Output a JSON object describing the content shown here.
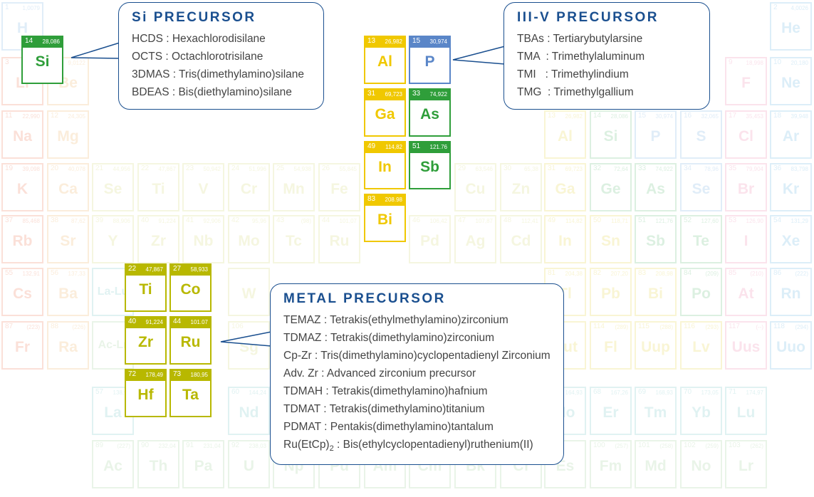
{
  "callouts": {
    "si": {
      "title": "Si PRECURSOR",
      "lines": [
        "HCDS : Hexachlorodisilane",
        "OCTS : Octachlorotrisilane",
        "3DMAS : Tris(dimethylamino)silane",
        "BDEAS : Bis(diethylamino)silane"
      ]
    },
    "iiiv": {
      "title": "III-V PRECURSOR",
      "lines": [
        "TBAs : Tertiarybutylarsine",
        "TMA  : Trimethylaluminum",
        "TMI   : Trimethylindium",
        "TMG  : Trimethylgallium"
      ]
    },
    "metal": {
      "title": "METAL PRECURSOR",
      "lines": [
        "TEMAZ : Tetrakis(ethylmethylamino)zirconium",
        "TDMAZ : Tetrakis(dimethylamino)zirconium",
        "Cp-Zr : Tris(dimethylamino)cyclopentadienyl Zirconium",
        "Adv. Zr : Advanced zirconium precursor",
        "TDMAH : Tetrakis(dimethylamino)hafnium",
        "TDMAT : Tetrakis(dimethylamino)titanium",
        "PDMAT : Pentakis(dimethylamino)tantalum"
      ],
      "last_line": {
        "prefix": "Ru(EtCp)",
        "subscript": "2",
        "suffix": " : Bis(ethylcyclopentadienyl)ruthenium(II)"
      }
    }
  },
  "colors": {
    "blue": "#1a4f8f",
    "green": "#2f9e3a",
    "yellow": "#f0c800",
    "olive": "#b8b800",
    "p_blue": "#5a86c8",
    "alkali": "#f29a80",
    "alkaline": "#f3c78c",
    "transition": "#e0e39a",
    "post": "#eddf72",
    "metalloid": "#8dcf9d",
    "nonmetal": "#9cc4ea",
    "halogen": "#f3a6c3",
    "noble": "#8ec8ea",
    "lanth": "#9cd6d6",
    "actin": "#b9dcb4"
  },
  "highlighted_elements": [
    {
      "num": "14",
      "mass": "28,086",
      "sym": "Si",
      "color": "green"
    },
    {
      "num": "13",
      "mass": "26,982",
      "sym": "Al",
      "color": "yellow"
    },
    {
      "num": "15",
      "mass": "30,974",
      "sym": "P",
      "color": "p_blue"
    },
    {
      "num": "31",
      "mass": "69,723",
      "sym": "Ga",
      "color": "yellow"
    },
    {
      "num": "33",
      "mass": "74,922",
      "sym": "As",
      "color": "green"
    },
    {
      "num": "49",
      "mass": "114,82",
      "sym": "In",
      "color": "yellow"
    },
    {
      "num": "51",
      "mass": "121.76",
      "sym": "Sb",
      "color": "green"
    },
    {
      "num": "83",
      "mass": "208.98",
      "sym": "Bi",
      "color": "yellow"
    },
    {
      "num": "22",
      "mass": "47,867",
      "sym": "Ti",
      "color": "olive"
    },
    {
      "num": "27",
      "mass": "58,933",
      "sym": "Co",
      "color": "olive"
    },
    {
      "num": "40",
      "mass": "91,224",
      "sym": "Zr",
      "color": "olive"
    },
    {
      "num": "44",
      "mass": "101.07",
      "sym": "Ru",
      "color": "olive"
    },
    {
      "num": "72",
      "mass": "178,49",
      "sym": "Hf",
      "color": "olive"
    },
    {
      "num": "73",
      "mass": "180,95",
      "sym": "Ta",
      "color": "olive"
    }
  ],
  "background_elements": [
    {
      "num": "1",
      "mass": "1,0079",
      "sym": "H",
      "color": "nonmetal"
    },
    {
      "num": "2",
      "mass": "4,0026",
      "sym": "He",
      "color": "noble"
    },
    {
      "num": "3",
      "mass": "",
      "sym": "Li",
      "color": "alkali"
    },
    {
      "num": "4",
      "mass": "9,0122",
      "sym": "Be",
      "color": "alkaline"
    },
    {
      "num": "9",
      "mass": "18,998",
      "sym": "F",
      "color": "halogen"
    },
    {
      "num": "10",
      "mass": "20,180",
      "sym": "Ne",
      "color": "noble"
    },
    {
      "num": "11",
      "mass": "22,990",
      "sym": "Na",
      "color": "alkali"
    },
    {
      "num": "12",
      "mass": "24,305",
      "sym": "Mg",
      "color": "alkaline"
    },
    {
      "num": "13",
      "mass": "26,982",
      "sym": "Al",
      "color": "post"
    },
    {
      "num": "14",
      "mass": "28,086",
      "sym": "Si",
      "color": "metalloid"
    },
    {
      "num": "15",
      "mass": "30,974",
      "sym": "P",
      "color": "nonmetal"
    },
    {
      "num": "16",
      "mass": "32,065",
      "sym": "S",
      "color": "nonmetal"
    },
    {
      "num": "17",
      "mass": "35,453",
      "sym": "Cl",
      "color": "halogen"
    },
    {
      "num": "18",
      "mass": "39,948",
      "sym": "Ar",
      "color": "noble"
    },
    {
      "num": "19",
      "mass": "39,098",
      "sym": "K",
      "color": "alkali"
    },
    {
      "num": "20",
      "mass": "40,078",
      "sym": "Ca",
      "color": "alkaline"
    },
    {
      "num": "21",
      "mass": "44,956",
      "sym": "Se",
      "color": "transition"
    },
    {
      "num": "22",
      "mass": "47,867",
      "sym": "Ti",
      "color": "transition"
    },
    {
      "num": "23",
      "mass": "50,942",
      "sym": "V",
      "color": "transition"
    },
    {
      "num": "24",
      "mass": "51,996",
      "sym": "Cr",
      "color": "transition"
    },
    {
      "num": "25",
      "mass": "54,938",
      "sym": "Mn",
      "color": "transition"
    },
    {
      "num": "26",
      "mass": "55,845",
      "sym": "Fe",
      "color": "transition"
    },
    {
      "num": "29",
      "mass": "63,546",
      "sym": "Cu",
      "color": "transition"
    },
    {
      "num": "30",
      "mass": "65,38",
      "sym": "Zn",
      "color": "transition"
    },
    {
      "num": "31",
      "mass": "69,723",
      "sym": "Ga",
      "color": "post"
    },
    {
      "num": "32",
      "mass": "72,64",
      "sym": "Ge",
      "color": "metalloid"
    },
    {
      "num": "33",
      "mass": "74,922",
      "sym": "As",
      "color": "metalloid"
    },
    {
      "num": "34",
      "mass": "78,96",
      "sym": "Se",
      "color": "nonmetal"
    },
    {
      "num": "35",
      "mass": "79,904",
      "sym": "Br",
      "color": "halogen"
    },
    {
      "num": "36",
      "mass": "83,798",
      "sym": "Kr",
      "color": "noble"
    },
    {
      "num": "37",
      "mass": "85,468",
      "sym": "Rb",
      "color": "alkali"
    },
    {
      "num": "38",
      "mass": "87,62",
      "sym": "Sr",
      "color": "alkaline"
    },
    {
      "num": "39",
      "mass": "88,906",
      "sym": "Y",
      "color": "transition"
    },
    {
      "num": "40",
      "mass": "91,224",
      "sym": "Zr",
      "color": "transition"
    },
    {
      "num": "41",
      "mass": "92,906",
      "sym": "Nb",
      "color": "transition"
    },
    {
      "num": "42",
      "mass": "95,96",
      "sym": "Mo",
      "color": "transition"
    },
    {
      "num": "43",
      "mass": "(98)",
      "sym": "Tc",
      "color": "transition"
    },
    {
      "num": "44",
      "mass": "101,07",
      "sym": "Ru",
      "color": "transition"
    },
    {
      "num": "46",
      "mass": "106,42",
      "sym": "Pd",
      "color": "transition"
    },
    {
      "num": "47",
      "mass": "107,87",
      "sym": "Ag",
      "color": "transition"
    },
    {
      "num": "48",
      "mass": "112,41",
      "sym": "Cd",
      "color": "transition"
    },
    {
      "num": "49",
      "mass": "114,82",
      "sym": "In",
      "color": "post"
    },
    {
      "num": "50",
      "mass": "118,71",
      "sym": "Sn",
      "color": "post"
    },
    {
      "num": "51",
      "mass": "121,76",
      "sym": "Sb",
      "color": "metalloid"
    },
    {
      "num": "52",
      "mass": "127,60",
      "sym": "Te",
      "color": "metalloid"
    },
    {
      "num": "53",
      "mass": "126,90",
      "sym": "I",
      "color": "halogen"
    },
    {
      "num": "54",
      "mass": "131,29",
      "sym": "Xe",
      "color": "noble"
    },
    {
      "num": "55",
      "mass": "132,91",
      "sym": "Cs",
      "color": "alkali"
    },
    {
      "num": "56",
      "mass": "137,33",
      "sym": "Ba",
      "color": "alkaline"
    },
    {
      "num": "",
      "mass": "",
      "sym": "La-Lu",
      "color": "lanth"
    },
    {
      "num": "",
      "mass": "",
      "sym": "W",
      "color": "transition"
    },
    {
      "num": "81",
      "mass": "204,38",
      "sym": "Tl",
      "color": "post"
    },
    {
      "num": "82",
      "mass": "207,20",
      "sym": "Pb",
      "color": "post"
    },
    {
      "num": "83",
      "mass": "208,98",
      "sym": "Bi",
      "color": "post"
    },
    {
      "num": "84",
      "mass": "(209)",
      "sym": "Po",
      "color": "metalloid"
    },
    {
      "num": "85",
      "mass": "(210)",
      "sym": "At",
      "color": "halogen"
    },
    {
      "num": "86",
      "mass": "(222)",
      "sym": "Rn",
      "color": "noble"
    },
    {
      "num": "87",
      "mass": "(223)",
      "sym": "Fr",
      "color": "alkali"
    },
    {
      "num": "88",
      "mass": "(226)",
      "sym": "Ra",
      "color": "alkaline"
    },
    {
      "num": "",
      "mass": "",
      "sym": "Ac-Lr",
      "color": "actin"
    },
    {
      "num": "106",
      "mass": "",
      "sym": "Sg",
      "color": "transition"
    },
    {
      "num": "",
      "mass": "",
      "sym": "Uut",
      "color": "post"
    },
    {
      "num": "114",
      "mass": "(289)",
      "sym": "Fl",
      "color": "post"
    },
    {
      "num": "115",
      "mass": "(288)",
      "sym": "Uup",
      "color": "post"
    },
    {
      "num": "116",
      "mass": "(293)",
      "sym": "Lv",
      "color": "post"
    },
    {
      "num": "117",
      "mass": "(--)",
      "sym": "Uus",
      "color": "halogen"
    },
    {
      "num": "118",
      "mass": "(294)",
      "sym": "Uuo",
      "color": "noble"
    },
    {
      "num": "57",
      "mass": "138,91",
      "sym": "La",
      "color": "lanth"
    },
    {
      "num": "60",
      "mass": "144,24",
      "sym": "Nd",
      "color": "lanth"
    },
    {
      "num": "",
      "mass": "164,93",
      "sym": "Ho",
      "color": "lanth"
    },
    {
      "num": "68",
      "mass": "167,26",
      "sym": "Er",
      "color": "lanth"
    },
    {
      "num": "69",
      "mass": "168,93",
      "sym": "Tm",
      "color": "lanth"
    },
    {
      "num": "70",
      "mass": "173,05",
      "sym": "Yb",
      "color": "lanth"
    },
    {
      "num": "71",
      "mass": "174,97",
      "sym": "Lu",
      "color": "lanth"
    },
    {
      "num": "89",
      "mass": "(227)",
      "sym": "Ac",
      "color": "actin"
    },
    {
      "num": "90",
      "mass": "232,04",
      "sym": "Th",
      "color": "actin"
    },
    {
      "num": "91",
      "mass": "231,04",
      "sym": "Pa",
      "color": "actin"
    },
    {
      "num": "92",
      "mass": "238,03",
      "sym": "U",
      "color": "actin"
    },
    {
      "num": "93",
      "mass": "",
      "sym": "Np",
      "color": "actin"
    },
    {
      "num": "94",
      "mass": "",
      "sym": "Pu",
      "color": "actin"
    },
    {
      "num": "95",
      "mass": "",
      "sym": "Am",
      "color": "actin"
    },
    {
      "num": "96",
      "mass": "",
      "sym": "Cm",
      "color": "actin"
    },
    {
      "num": "97",
      "mass": "",
      "sym": "Bk",
      "color": "actin"
    },
    {
      "num": "98",
      "mass": "",
      "sym": "Cf",
      "color": "actin"
    },
    {
      "num": "99",
      "mass": "",
      "sym": "Es",
      "color": "actin"
    },
    {
      "num": "100",
      "mass": "(257)",
      "sym": "Fm",
      "color": "actin"
    },
    {
      "num": "101",
      "mass": "(258)",
      "sym": "Md",
      "color": "actin"
    },
    {
      "num": "102",
      "mass": "(259)",
      "sym": "No",
      "color": "actin"
    },
    {
      "num": "103",
      "mass": "(262)",
      "sym": "Lr",
      "color": "actin"
    }
  ]
}
